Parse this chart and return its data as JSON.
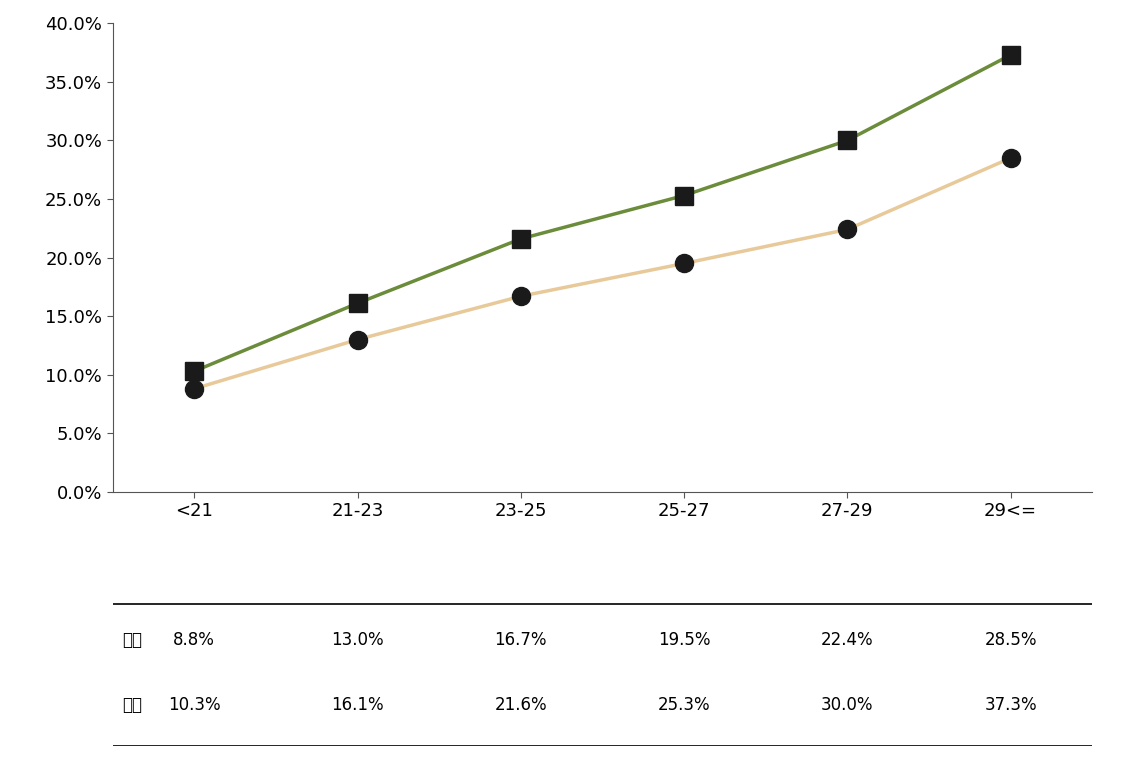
{
  "categories": [
    "<21",
    "21-23",
    "23-25",
    "25-27",
    "27-29",
    "29<="
  ],
  "female_values": [
    0.088,
    0.13,
    0.167,
    0.195,
    0.224,
    0.285
  ],
  "male_values": [
    0.103,
    0.161,
    0.216,
    0.253,
    0.3,
    0.373
  ],
  "female_label": "여성",
  "male_label": "남성",
  "female_color": "#e8c99a",
  "male_color": "#6b8c3a",
  "female_marker": "o",
  "male_marker": "s",
  "marker_color": "#1a1a1a",
  "ylim": [
    0.0,
    0.4
  ],
  "yticks": [
    0.0,
    0.05,
    0.1,
    0.15,
    0.2,
    0.25,
    0.3,
    0.35,
    0.4
  ],
  "table_female_values": [
    "8.8%",
    "13.0%",
    "16.7%",
    "19.5%",
    "22.4%",
    "28.5%"
  ],
  "table_male_values": [
    "10.3%",
    "16.1%",
    "21.6%",
    "25.3%",
    "30.0%",
    "37.3%"
  ],
  "line_width": 2.5,
  "marker_size": 13,
  "background_color": "#ffffff",
  "plot_bg_color": "#ffffff",
  "spine_color": "#555555",
  "tick_fontsize": 13,
  "table_fontsize": 12,
  "table_label_fontsize": 12
}
